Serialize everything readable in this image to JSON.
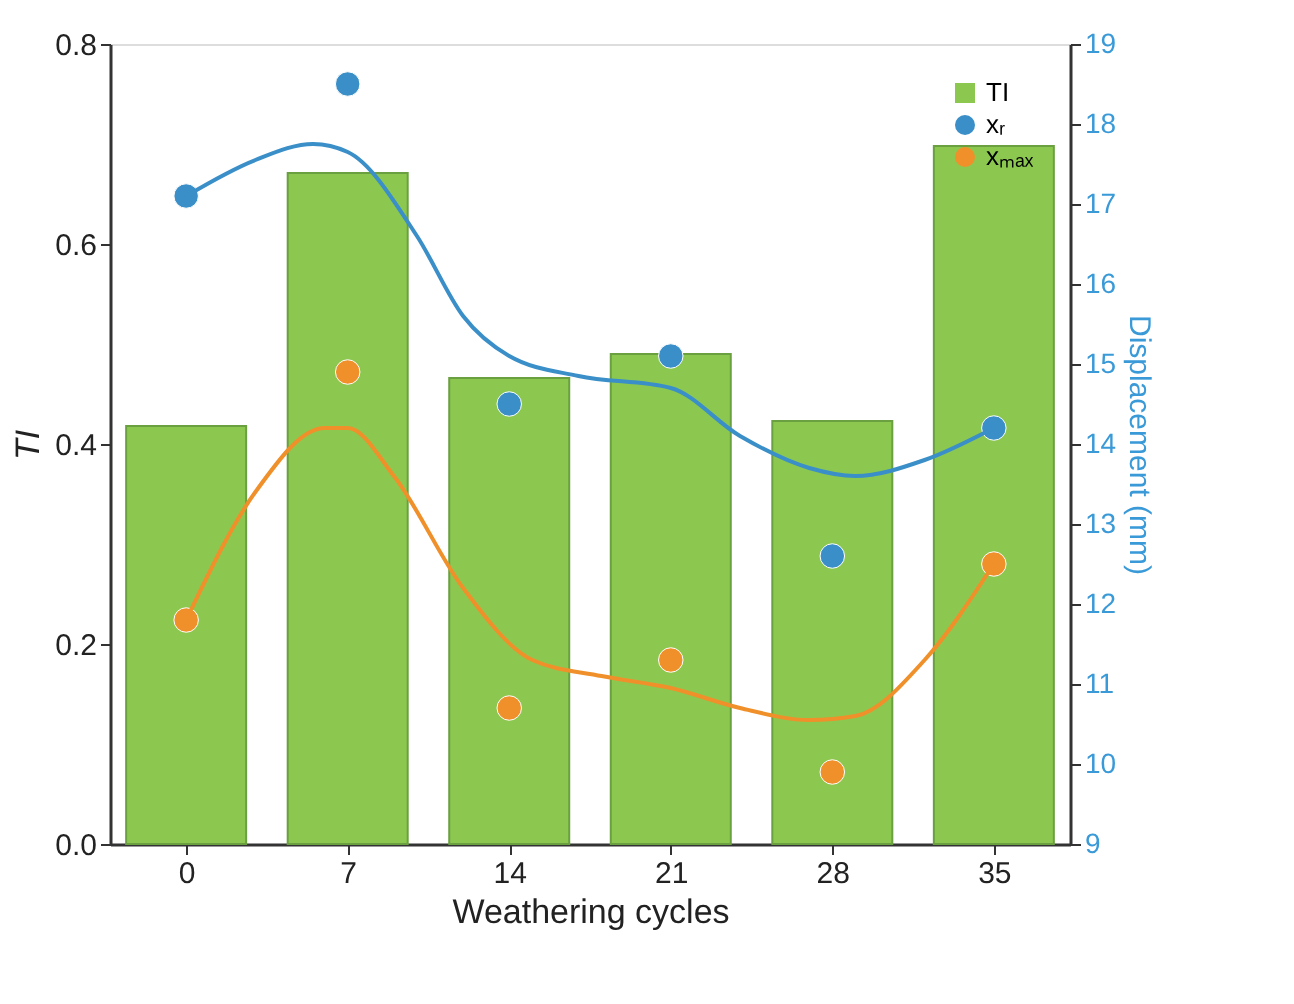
{
  "chart_data": {
    "type": "bar",
    "xlabel": "Weathering cycles",
    "ylabel": "TI",
    "y2label": "Displacement (mm)",
    "x": [
      0,
      7,
      14,
      21,
      28,
      35
    ],
    "xlim": [
      -3.3,
      38.3
    ],
    "xticks": [
      0,
      7,
      14,
      21,
      28,
      35
    ],
    "ylim": [
      0,
      0.8
    ],
    "yticks": [
      {
        "value": 0,
        "label": "0.0"
      },
      0.2,
      0.4,
      0.6,
      0.8
    ],
    "y2lim": [
      9,
      19
    ],
    "y2ticks": [
      9,
      10,
      11,
      12,
      13,
      14,
      15,
      16,
      17,
      18,
      19
    ],
    "legend": "top right",
    "grid": false,
    "series": [
      {
        "name": "TI",
        "color": "#8cc850",
        "values": [
          0.418,
          0.671,
          0.466,
          0.49,
          0.423,
          0.698
        ]
      },
      {
        "name": "xᵣ",
        "type": "scatter",
        "axis": "y2",
        "color": "#3a8fc8",
        "marker": "circle",
        "values": [
          17.1,
          18.5,
          14.5,
          15.1,
          12.6,
          14.2
        ]
      },
      {
        "name": "xₘₐₓ",
        "type": "scatter",
        "axis": "y2",
        "color": "#f0902a",
        "marker": "circle",
        "values": [
          11.8,
          14.9,
          10.7,
          11.3,
          9.9,
          12.5
        ]
      },
      {
        "type": "line",
        "axis": "y2",
        "color": "#3a8fc8",
        "x": [
          0,
          3,
          5.5,
          7,
          10,
          12,
          14,
          17,
          21,
          24,
          27,
          29,
          32,
          35
        ],
        "values": [
          17.1,
          17.55,
          17.75,
          17.65,
          16.6,
          15.6,
          15.1,
          14.85,
          14.7,
          14.1,
          13.7,
          13.6,
          13.8,
          14.2
        ]
      },
      {
        "type": "line",
        "axis": "y2",
        "color": "#f0902a",
        "x": [
          0,
          3,
          6,
          7,
          9,
          12,
          15,
          18,
          21,
          24,
          27,
          29,
          32,
          35
        ],
        "values": [
          11.8,
          13.4,
          14.2,
          14.2,
          13.6,
          12.2,
          11.3,
          11.1,
          10.95,
          10.7,
          10.55,
          10.6,
          11.3,
          12.5
        ]
      }
    ]
  }
}
